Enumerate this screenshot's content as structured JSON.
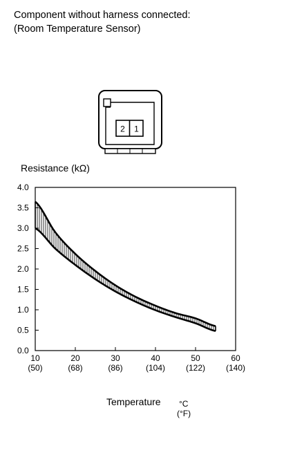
{
  "caption": {
    "line1": "Component without harness connected:",
    "line2": "(Room Temperature Sensor)"
  },
  "connector": {
    "pins": [
      "2",
      "1"
    ]
  },
  "chart_data": {
    "type": "area",
    "ylabel": "Resistance (kΩ)",
    "xlabel": "Temperature",
    "xunit_primary": "°C",
    "xunit_secondary": "(°F)",
    "xlim": [
      10,
      60
    ],
    "ylim": [
      0.0,
      4.0
    ],
    "xticks": [
      {
        "c": 10,
        "label": "10",
        "sub": "(50)"
      },
      {
        "c": 20,
        "label": "20",
        "sub": "(68)"
      },
      {
        "c": 30,
        "label": "30",
        "sub": "(86)"
      },
      {
        "c": 40,
        "label": "40",
        "sub": "(104)"
      },
      {
        "c": 50,
        "label": "50",
        "sub": "(122)"
      },
      {
        "c": 60,
        "label": "60",
        "sub": "(140)"
      }
    ],
    "yticks": [
      "0.0",
      "0.5",
      "1.0",
      "1.5",
      "2.0",
      "2.5",
      "3.0",
      "3.5",
      "4.0"
    ],
    "grid": false,
    "band": {
      "x": [
        10,
        15,
        20,
        25,
        30,
        35,
        40,
        45,
        50,
        55
      ],
      "upper": [
        3.65,
        2.9,
        2.37,
        1.95,
        1.6,
        1.32,
        1.1,
        0.92,
        0.79,
        0.6
      ],
      "lower": [
        3.0,
        2.5,
        2.1,
        1.75,
        1.45,
        1.2,
        0.99,
        0.82,
        0.67,
        0.48
      ]
    }
  }
}
